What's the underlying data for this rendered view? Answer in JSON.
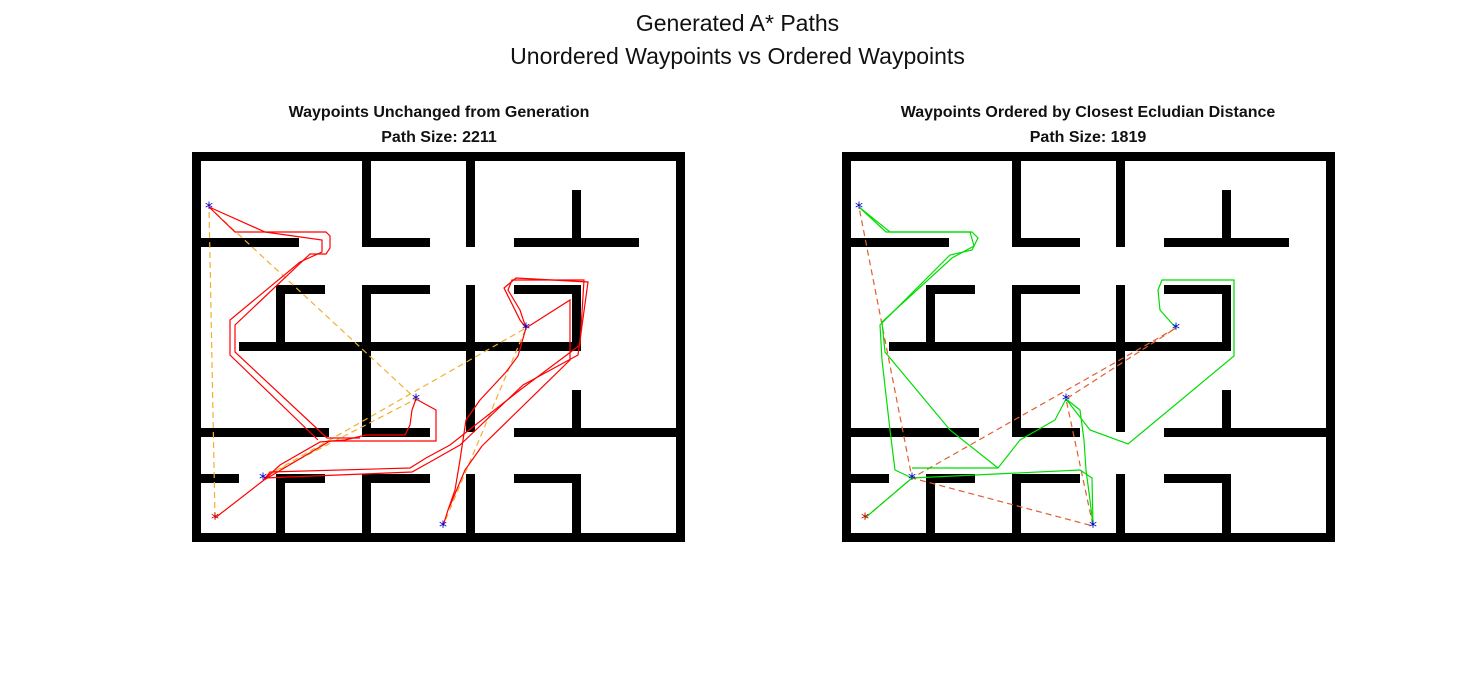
{
  "figure": {
    "title_line1": "Generated A* Paths",
    "title_line2": "Unordered Waypoints vs Ordered Waypoints"
  },
  "panels": [
    {
      "title": "Waypoints Unchanged from Generation",
      "path_size": "Path Size: 2211",
      "path_color": "#ff0000",
      "connector_color": "#f0b030"
    },
    {
      "title": "Waypoints Ordered by Closest Ecludian Distance",
      "path_size": "Path Size: 1819",
      "path_color": "#00dd00",
      "connector_color": "#e06030"
    }
  ],
  "marker_colors": {
    "start": "#cc0000",
    "waypoint": "#0000cc"
  },
  "wall_color": "#000000"
}
